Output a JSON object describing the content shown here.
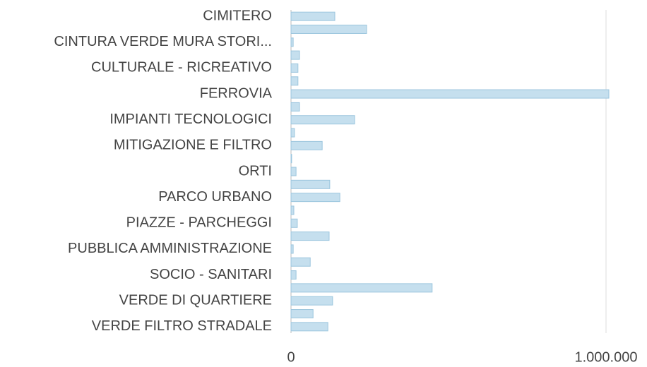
{
  "chart_data": {
    "type": "hbar",
    "categories": [
      "CIMITERO",
      null,
      "CINTURA VERDE MURA STORI...",
      null,
      "CULTURALE - RICREATIVO",
      null,
      "FERROVIA",
      null,
      "IMPIANTI TECNOLOGICI",
      null,
      "MITIGAZIONE E FILTRO",
      null,
      "ORTI",
      null,
      "PARCO URBANO",
      null,
      "PIAZZE - PARCHEGGI",
      null,
      "PUBBLICA AMMINISTRAZIONE",
      null,
      "SOCIO - SANITARI",
      null,
      "VERDE DI QUARTIERE",
      null,
      "VERDE FILTRO STRADALE"
    ],
    "values": [
      139000,
      240000,
      7000,
      27000,
      22000,
      22000,
      1009000,
      27000,
      202000,
      11000,
      99000,
      2000,
      16000,
      123000,
      155000,
      9000,
      20000,
      121000,
      7000,
      61000,
      16000,
      448000,
      132000,
      70000,
      117000
    ],
    "color": "#c5dfee",
    "xlim": [
      0,
      1100000
    ],
    "xticks": [
      0,
      {
        "value": 1000000,
        "label": "1.000.000"
      }
    ],
    "grid": true
  }
}
